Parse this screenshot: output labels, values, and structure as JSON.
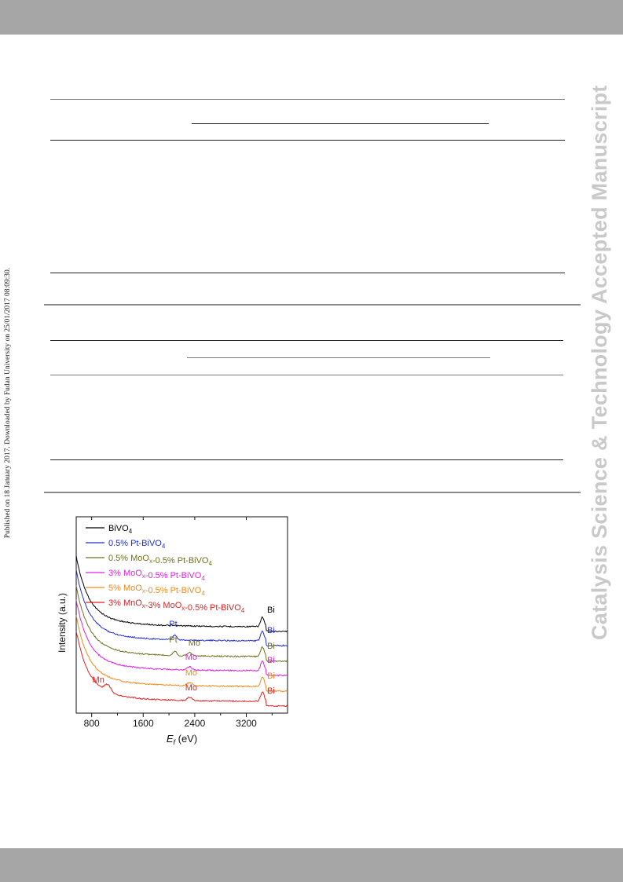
{
  "side_text": {
    "left": "Published on 18 January 2017. Downloaded by Fudan University on 25/01/2017 08:09:30.",
    "right": "Catalysis Science & Technology Accepted Manuscript"
  },
  "chart_data": {
    "type": "line",
    "xlabel_main": "E",
    "xlabel_sub": "f",
    "xlabel_unit": " (eV)",
    "ylabel": "Intensity (a.u.)",
    "xlim": [
      560,
      3840
    ],
    "xticks": [
      800,
      1600,
      2400,
      3200
    ],
    "y_ticks_shown": false,
    "legend_position": "top-left",
    "series": [
      {
        "name": "BiVO",
        "name_sub": "4",
        "name_suffix": "",
        "color": "#000000",
        "offset": 5,
        "peaks": [
          "Bi"
        ]
      },
      {
        "name": "0.5% Pt-BiVO",
        "name_sub": "4",
        "name_suffix": "",
        "color": "#1f2fd0",
        "offset": 4,
        "peaks": [
          "Pt",
          "Bi"
        ]
      },
      {
        "name": "0.5% MoO",
        "name_sub": "x",
        "name_suffix": "-0.5% Pt-BiVO",
        "name_suffix_sub": "4",
        "color": "#707020",
        "offset": 3,
        "peaks": [
          "Pt",
          "Mo",
          "Bi"
        ]
      },
      {
        "name": "3% MoO",
        "name_sub": "x",
        "name_suffix": "-0.5% Pt-BiVO",
        "name_suffix_sub": "4",
        "color": "#e020e0",
        "offset": 2,
        "peaks": [
          "Mo",
          "Bi"
        ]
      },
      {
        "name": "5% MoO",
        "name_sub": "x",
        "name_suffix": "-0.5% Pt-BiVO",
        "name_suffix_sub": "4",
        "color": "#f08a1a",
        "offset": 1,
        "peaks": [
          "Mo",
          "Bi"
        ]
      },
      {
        "name": "3% MnO",
        "name_sub": "x",
        "name_suffix": "-3% MoO",
        "name_suffix_sub": "x",
        "name_suffix2": "-0.5% Pt-BiVO",
        "name_suffix2_sub": "4",
        "color": "#e02020",
        "offset": 0,
        "peaks": [
          "Mn",
          "Mo",
          "Bi"
        ]
      }
    ],
    "peak_positions": {
      "Mn": 1050,
      "Pt": 2090,
      "Mo": 2320,
      "Bi": 3450
    }
  }
}
